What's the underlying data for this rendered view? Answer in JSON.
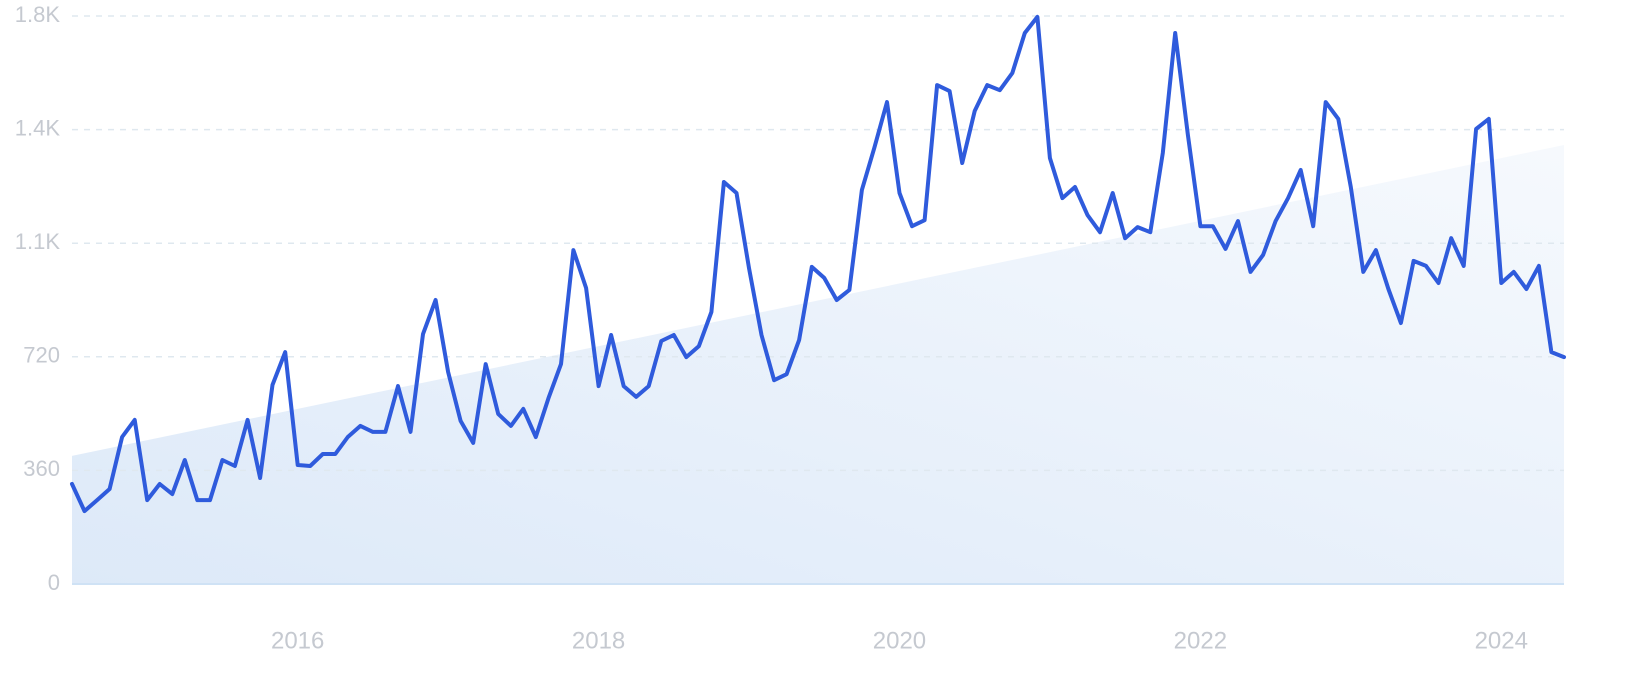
{
  "chart_data": {
    "type": "line",
    "color": "#2f5bdc",
    "trend_color": "#dbe8f8",
    "x": [
      2014.5,
      2014.583,
      2014.667,
      2014.75,
      2014.833,
      2014.917,
      2015,
      2015.083,
      2015.167,
      2015.25,
      2015.333,
      2015.417,
      2015.5,
      2015.583,
      2015.667,
      2015.75,
      2015.833,
      2015.917,
      2016,
      2016.083,
      2016.167,
      2016.25,
      2016.333,
      2016.417,
      2016.5,
      2016.583,
      2016.667,
      2016.75,
      2016.833,
      2016.917,
      2017,
      2017.083,
      2017.167,
      2017.25,
      2017.333,
      2017.417,
      2017.5,
      2017.583,
      2017.667,
      2017.75,
      2017.833,
      2017.917,
      2018,
      2018.083,
      2018.167,
      2018.25,
      2018.333,
      2018.417,
      2018.5,
      2018.583,
      2018.667,
      2018.75,
      2018.833,
      2018.917,
      2019,
      2019.083,
      2019.167,
      2019.25,
      2019.333,
      2019.417,
      2019.5,
      2019.583,
      2019.667,
      2019.75,
      2019.833,
      2019.917,
      2020,
      2020.083,
      2020.167,
      2020.25,
      2020.333,
      2020.417,
      2020.5,
      2020.583,
      2020.667,
      2020.75,
      2020.833,
      2020.917,
      2021,
      2021.083,
      2021.167,
      2021.25,
      2021.333,
      2021.417,
      2021.5,
      2021.583,
      2021.667,
      2021.75,
      2021.833,
      2021.917,
      2022,
      2022.083,
      2022.167,
      2022.25,
      2022.333,
      2022.417,
      2022.5,
      2022.583,
      2022.667,
      2022.75,
      2022.833,
      2022.917,
      2023,
      2023.083,
      2023.167,
      2023.25,
      2023.333,
      2023.417,
      2023.5,
      2023.583,
      2023.667,
      2023.75,
      2023.833,
      2023.917,
      2024,
      2024.083,
      2024.167,
      2024.25,
      2024.333,
      2024.417
    ],
    "values": [
      317,
      231,
      266,
      301,
      466,
      520,
      266,
      317,
      285,
      393,
      266,
      266,
      393,
      374,
      520,
      336,
      631,
      735,
      377,
      374,
      412,
      412,
      466,
      501,
      482,
      482,
      627,
      482,
      792,
      900,
      672,
      517,
      447,
      697,
      539,
      501,
      555,
      466,
      589,
      697,
      1058,
      938,
      627,
      789,
      627,
      593,
      627,
      770,
      789,
      719,
      754,
      862,
      1274,
      1239,
      1001,
      789,
      646,
      665,
      773,
      1005,
      970,
      900,
      932,
      1249,
      1382,
      1527,
      1239,
      1134,
      1153,
      1581,
      1562,
      1334,
      1499,
      1581,
      1565,
      1619,
      1746,
      1797,
      1350,
      1223,
      1258,
      1169,
      1115,
      1239,
      1096,
      1131,
      1115,
      1366,
      1746,
      1423,
      1134,
      1134,
      1062,
      1150,
      989,
      1043,
      1150,
      1223,
      1312,
      1134,
      1527,
      1474,
      1258,
      989,
      1058,
      935,
      827,
      1024,
      1008,
      954,
      1096,
      1008,
      1442,
      1474,
      954,
      989,
      935,
      1008,
      735,
      719
    ],
    "trend": {
      "x": [
        2014.5,
        2024.417
      ],
      "values": [
        406,
        1391
      ]
    },
    "xlim": [
      2014.5,
      2024.417
    ],
    "xticks": [
      2016,
      2018,
      2020,
      2022,
      2024
    ],
    "ylim": [
      0,
      1800
    ],
    "yticks": [
      0,
      360,
      720,
      {
        "value": 1080,
        "label": "1.1K"
      },
      {
        "value": 1440,
        "label": "1.4K"
      },
      {
        "value": 1800,
        "label": "1.8K"
      }
    ],
    "grid": true
  }
}
